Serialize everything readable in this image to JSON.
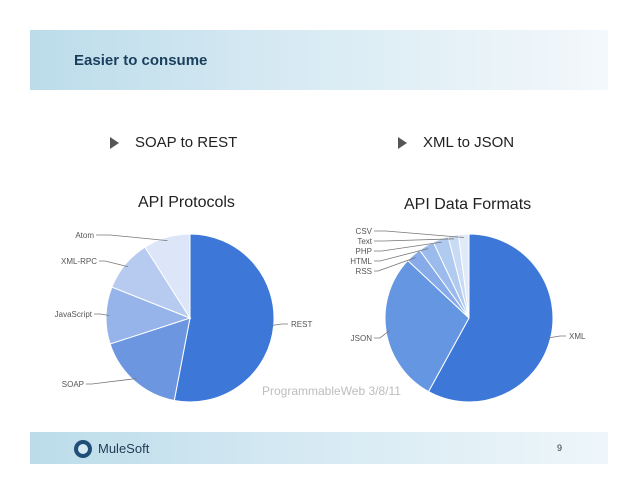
{
  "slide": {
    "title": "Easier to consume",
    "bullets": [
      "SOAP to REST",
      "XML to JSON"
    ],
    "source": "ProgrammableWeb 3/8/11",
    "page_number": "9",
    "logo_text": "MuleSoft"
  },
  "chart_data": [
    {
      "type": "pie",
      "title": "API Protocols",
      "labels": [
        "REST",
        "SOAP",
        "JavaScript",
        "XML-RPC",
        "Atom"
      ],
      "values": [
        53,
        17,
        11,
        10,
        9
      ],
      "colors": [
        "#3d78d8",
        "#6d96e0",
        "#97b4ea",
        "#b7cbf0",
        "#dde6f8"
      ]
    },
    {
      "type": "pie",
      "title": "API Data Formats",
      "labels": [
        "XML",
        "JSON",
        "RSS",
        "HTML",
        "PHP",
        "Text",
        "CSV"
      ],
      "values": [
        58,
        29,
        3,
        3,
        3,
        2,
        2
      ],
      "colors": [
        "#3d78d8",
        "#6596e2",
        "#86abe8",
        "#9bbbec",
        "#b1caef",
        "#c9daf4",
        "#e1eaf8"
      ]
    }
  ]
}
